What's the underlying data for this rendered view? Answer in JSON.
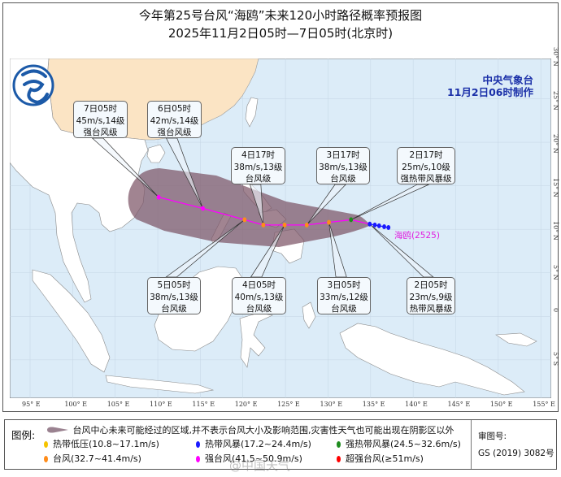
{
  "header": {
    "title": "今年第25号台风“海鸥”未来120小时路径概率预报图",
    "subtitle": "2025年11月2日05时—7日05时(北京时)"
  },
  "agency": {
    "name": "中央气象台",
    "issued": "11月2日06时制作"
  },
  "storm_label": "海鸥(2525)",
  "colors": {
    "sea": "#dcecf8",
    "china_land": "#fbe4c4",
    "other_land": "#ffffff",
    "cone": "#8c6577",
    "track": "#ff00ff",
    "tropical_depression": "#f5c400",
    "tropical_storm": "#1a1aff",
    "severe_tropical_storm": "#1e8c1e",
    "typhoon": "#ff8c1a",
    "severe_typhoon": "#ff00ff",
    "super_typhoon": "#ff0000"
  },
  "axes": {
    "lat_labels": [
      "30° N",
      "25° N",
      "20° N",
      "15° N",
      "10° N",
      "5° N",
      "0",
      "5° S"
    ],
    "lat_values": [
      30,
      25,
      20,
      15,
      10,
      5,
      0,
      -5
    ],
    "lon_labels": [
      "95° E",
      "100° E",
      "105° E",
      "110° E",
      "115° E",
      "120° E",
      "125° E",
      "130° E",
      "135° E",
      "140° E",
      "145° E",
      "150° E",
      "155° E"
    ],
    "lon_values": [
      95,
      100,
      105,
      110,
      115,
      120,
      125,
      130,
      135,
      140,
      145,
      150,
      155
    ]
  },
  "past_track": [
    {
      "lon": 137.1,
      "lat": 10.2,
      "level": "tropical_storm"
    },
    {
      "lon": 136.6,
      "lat": 10.3,
      "level": "tropical_storm"
    },
    {
      "lon": 136.0,
      "lat": 10.4,
      "level": "tropical_storm"
    },
    {
      "lon": 135.5,
      "lat": 10.5,
      "level": "tropical_storm"
    }
  ],
  "forecast": [
    {
      "time": "2日05时",
      "wind": "23m/s,9级",
      "level_text": "热带风暴级",
      "level": "tropical_storm",
      "lon": 134.9,
      "lat": 10.6
    },
    {
      "time": "2日17时",
      "wind": "25m/s,10级",
      "level_text": "强热带风暴级",
      "level": "severe_tropical_storm",
      "lon": 132.7,
      "lat": 11.1
    },
    {
      "time": "3日05时",
      "wind": "33m/s,12级",
      "level_text": "台风级",
      "level": "typhoon",
      "lon": 130.1,
      "lat": 10.8
    },
    {
      "time": "3日17时",
      "wind": "38m/s,13级",
      "level_text": "台风级",
      "level": "typhoon",
      "lon": 127.5,
      "lat": 10.5
    },
    {
      "time": "4日05时",
      "wind": "40m/s,13级",
      "level_text": "台风级",
      "level": "typhoon",
      "lon": 124.9,
      "lat": 10.5
    },
    {
      "time": "4日17时",
      "wind": "38m/s,13级",
      "level_text": "台风级",
      "level": "typhoon",
      "lon": 122.4,
      "lat": 10.5
    },
    {
      "time": "5日05时",
      "wind": "38m/s,13级",
      "level_text": "台风级",
      "level": "typhoon",
      "lon": 120.2,
      "lat": 11.1
    },
    {
      "time": "6日05时",
      "wind": "42m/s,14级",
      "level_text": "强台风级",
      "level": "severe_typhoon",
      "lon": 115.3,
      "lat": 12.4
    },
    {
      "time": "7日05时",
      "wind": "45m/s,14级",
      "level_text": "强台风级",
      "level": "severe_typhoon",
      "lon": 110.1,
      "lat": 13.7
    }
  ],
  "legend": {
    "title": "图例:",
    "cone_note": "台风中心未来可能经过的区域,并不表示台风大小及影响范围,灾害性天气也可能出现在阴影区以外",
    "items": [
      {
        "label": "热带低压(10.8~17.1m/s)",
        "color": "#f5c400"
      },
      {
        "label": "热带风暴(17.2~24.4m/s)",
        "color": "#1a1aff"
      },
      {
        "label": "强热带风暴(24.5~32.6m/s)",
        "color": "#1e8c1e"
      },
      {
        "label": "台风(32.7~41.4m/s)",
        "color": "#ff8c1a"
      },
      {
        "label": "强台风(41.5~50.9m/s)",
        "color": "#ff00ff"
      },
      {
        "label": "超强台风(≥51m/s)",
        "color": "#ff0000"
      }
    ],
    "review_label": "审图号:",
    "review_number": "GS (2019) 3082号"
  },
  "watermark": "@中国天气"
}
